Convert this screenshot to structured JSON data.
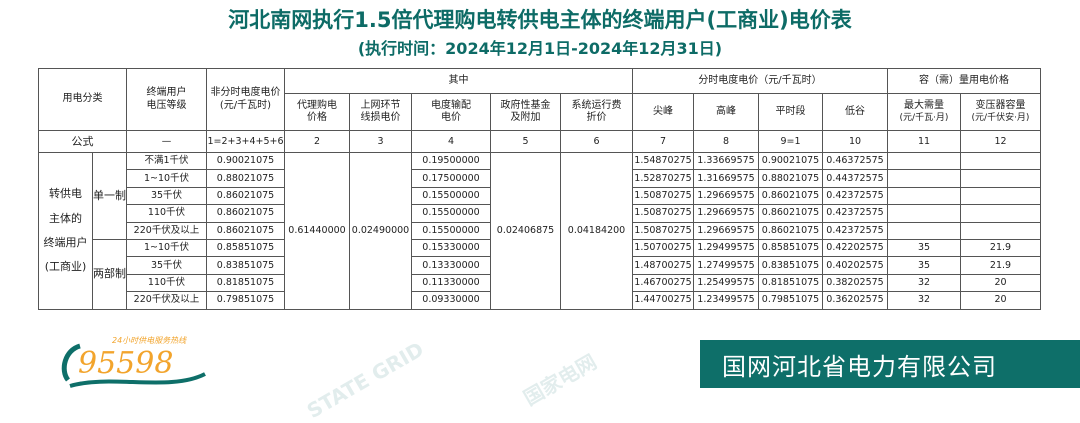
{
  "title": "河北南网执行1.5倍代理购电转供电主体的终端用户(工商业)电价表",
  "subtitle": "(执行时间：2024年12月1日-2024年12月31日)",
  "header": {
    "category": "用电分类",
    "voltage": "终端用户\n电压等级",
    "nontou": "非分时电度电价\n(元/千瓦时)",
    "of_which": "其中",
    "agent": "代理购电\n价格",
    "loss": "上网环节\n线损电价",
    "trans": "电度输配\n电价",
    "gov": "政府性基金\n及附加",
    "sys": "系统运行费\n折价",
    "tou": "分时电度电价（元/千瓦时）",
    "peak_top": "尖峰",
    "peak": "高峰",
    "flat": "平时段",
    "valley": "低谷",
    "capacity": "容（需）量用电价格",
    "max_demand": "最大需量",
    "max_demand_unit": "(元/千瓦·月)",
    "transformer": "变压器容量",
    "transformer_unit": "(元/千伏安·月)"
  },
  "formula": {
    "label": "公式",
    "cells": [
      "—",
      "1=2+3+4+5+6",
      "2",
      "3",
      "4",
      "5",
      "6",
      "7",
      "8",
      "9=1",
      "10",
      "11",
      "12"
    ]
  },
  "group": "转供电\n主体的\n终端用户\n(工商业)",
  "single": "单一制",
  "two_part": "两部制",
  "shared": {
    "agent": "0.61440000",
    "loss": "0.02490000",
    "gov": "0.02406875",
    "sys": "0.04184200"
  },
  "rows": [
    [
      "不满1千伏",
      "0.90021075",
      "0.19500000",
      "1.54870275",
      "1.33669575",
      "0.90021075",
      "0.46372575",
      "",
      ""
    ],
    [
      "1~10千伏",
      "0.88021075",
      "0.17500000",
      "1.52870275",
      "1.31669575",
      "0.88021075",
      "0.44372575",
      "",
      ""
    ],
    [
      "35千伏",
      "0.86021075",
      "0.15500000",
      "1.50870275",
      "1.29669575",
      "0.86021075",
      "0.42372575",
      "",
      ""
    ],
    [
      "110千伏",
      "0.86021075",
      "0.15500000",
      "1.50870275",
      "1.29669575",
      "0.86021075",
      "0.42372575",
      "",
      ""
    ],
    [
      "220千伏及以上",
      "0.86021075",
      "0.15500000",
      "1.50870275",
      "1.29669575",
      "0.86021075",
      "0.42372575",
      "",
      ""
    ],
    [
      "1~10千伏",
      "0.85851075",
      "0.15330000",
      "1.50700275",
      "1.29499575",
      "0.85851075",
      "0.42202575",
      "35",
      "21.9"
    ],
    [
      "35千伏",
      "0.83851075",
      "0.13330000",
      "1.48700275",
      "1.27499575",
      "0.83851075",
      "0.40202575",
      "35",
      "21.9"
    ],
    [
      "110千伏",
      "0.81851075",
      "0.11330000",
      "1.46700275",
      "1.25499575",
      "0.81851075",
      "0.38202575",
      "32",
      "20"
    ],
    [
      "220千伏及以上",
      "0.79851075",
      "0.09330000",
      "1.44700275",
      "1.23499575",
      "0.79851075",
      "0.36202575",
      "32",
      "20"
    ]
  ],
  "logo": {
    "hotline": "95598",
    "tagline": "24小时供电服务热线"
  },
  "watermark": [
    "国家电网",
    "STATE GRID"
  ],
  "footer": "国网河北省电力有限公司",
  "colors": {
    "brand": "#0e6f69",
    "logo_orange": "#f2a42c"
  }
}
